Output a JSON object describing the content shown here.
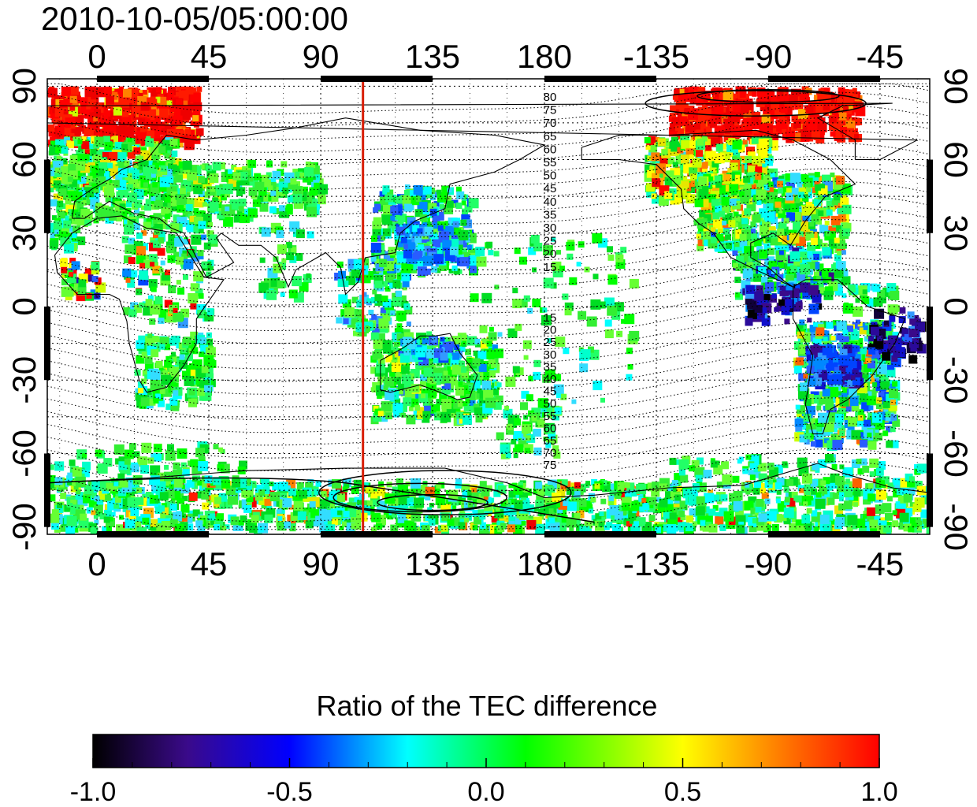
{
  "timestamp": "2010-10-05/05:00:00",
  "map": {
    "x_tick_labels": [
      "0",
      "45",
      "90",
      "135",
      "180",
      "-135",
      "-90",
      "-45"
    ],
    "x_tick_lon": [
      0,
      45,
      90,
      135,
      180,
      225,
      270,
      315
    ],
    "lon_range": [
      -20,
      335
    ],
    "lat_tick_labels": [
      "90",
      "60",
      "30",
      "0",
      "-30",
      "-60",
      "-90"
    ],
    "lat_tick_values": [
      90,
      60,
      30,
      0,
      -30,
      -60,
      -90
    ],
    "lat_range": [
      -93,
      93
    ],
    "terminator_lon": 107,
    "contour_labels_north": [
      "80",
      "75",
      "70",
      "65",
      "60",
      "55",
      "50",
      "45",
      "40",
      "35",
      "30",
      "25",
      "20",
      "15"
    ],
    "contour_labels_south": [
      "15",
      "20",
      "25",
      "30",
      "35",
      "40",
      "45",
      "50",
      "55",
      "60",
      "65",
      "70",
      "75"
    ]
  },
  "colorbar": {
    "title": "Ratio of the TEC difference",
    "tick_labels": [
      "-1.0",
      "-0.5",
      "0.0",
      "0.5",
      "1.0"
    ],
    "tick_values": [
      -1.0,
      -0.5,
      0.0,
      0.5,
      1.0
    ],
    "range": [
      -1.0,
      1.0
    ],
    "colors": [
      "#000000",
      "#3a0a8a",
      "#0000ff",
      "#00ffff",
      "#00ff00",
      "#ffff00",
      "#ff8000",
      "#ff0000"
    ]
  }
}
